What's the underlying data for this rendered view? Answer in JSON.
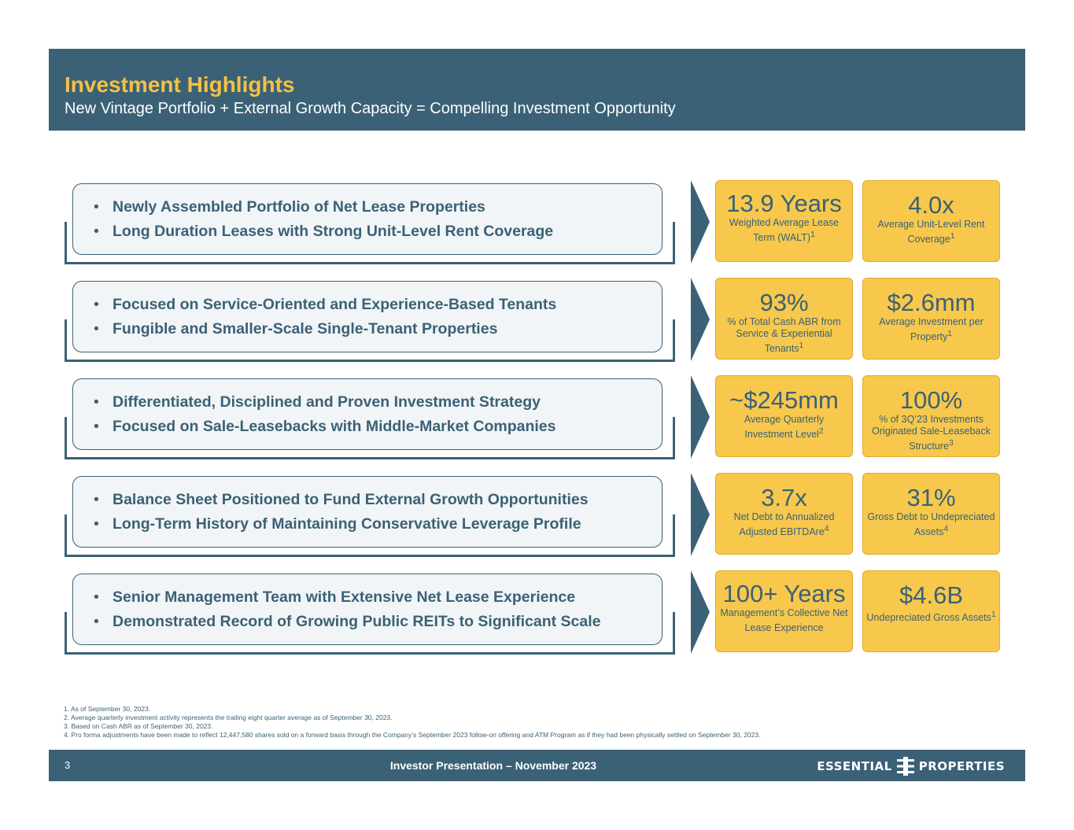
{
  "header": {
    "title": "Investment Highlights",
    "subtitle": "New Vintage Portfolio + External Growth Capacity = Compelling Investment Opportunity"
  },
  "highlights": [
    {
      "bullets": [
        "Newly Assembled Portfolio of Net Lease Properties",
        "Long Duration Leases with Strong Unit-Level Rent Coverage"
      ],
      "metrics": [
        {
          "value": "13.9 Years",
          "label": "Weighted Average Lease Term (WALT)",
          "sup": "1"
        },
        {
          "value": "4.0x",
          "label": "Average Unit-Level Rent Coverage",
          "sup": "1"
        }
      ]
    },
    {
      "bullets": [
        "Focused on Service-Oriented and Experience-Based Tenants",
        "Fungible and Smaller-Scale Single-Tenant Properties"
      ],
      "metrics": [
        {
          "value": "93%",
          "label": "% of Total Cash ABR from Service & Experiential Tenants",
          "sup": "1"
        },
        {
          "value": "$2.6mm",
          "label": "Average Investment per Property",
          "sup": "1"
        }
      ]
    },
    {
      "bullets": [
        "Differentiated, Disciplined and Proven Investment Strategy",
        "Focused on Sale-Leasebacks with Middle-Market Companies"
      ],
      "metrics": [
        {
          "value": "~$245mm",
          "label": "Average Quarterly Investment Level",
          "sup": "2"
        },
        {
          "value": "100%",
          "label": "% of 3Q’23 Investments Originated Sale-Leaseback Structure",
          "sup": "3"
        }
      ]
    },
    {
      "bullets": [
        "Balance Sheet Positioned to Fund External Growth Opportunities",
        "Long-Term History of Maintaining Conservative Leverage Profile"
      ],
      "metrics": [
        {
          "value": "3.7x",
          "label": "Net Debt to Annualized Adjusted EBITDAre",
          "sup": "4"
        },
        {
          "value": "31%",
          "label": "Gross Debt to Undepreciated Assets",
          "sup": "4"
        }
      ]
    },
    {
      "bullets": [
        "Senior Management Team with Extensive Net Lease Experience",
        "Demonstrated Record of Growing Public REITs to Significant Scale"
      ],
      "metrics": [
        {
          "value": "100+ Years",
          "label": "Management’s Collective Net Lease Experience",
          "sup": ""
        },
        {
          "value": "$4.6B",
          "label": "Undepreciated Gross Assets",
          "sup": "1"
        }
      ]
    }
  ],
  "footnotes": [
    "1.  As of September 30, 2023.",
    "2.  Average quarterly investment activity represents the trailing eight quarter average as of September 30, 2023.",
    "3.  Based on Cash ABR as of September 30, 2023.",
    "4.  Pro forma adjustments have been made to reflect 12,447,580 shares sold on a forward basis through the Company’s September 2023 follow-on offering and ATM Program as if they had been physically settled on September 30, 2023."
  ],
  "footer": {
    "page": "3",
    "text": "Investor Presentation – November 2023",
    "logo_left": "ESSENTIAL",
    "logo_right": "PROPERTIES"
  },
  "colors": {
    "navy": "#3b6176",
    "gold": "#f5c142",
    "tile": "#f7c84c"
  }
}
